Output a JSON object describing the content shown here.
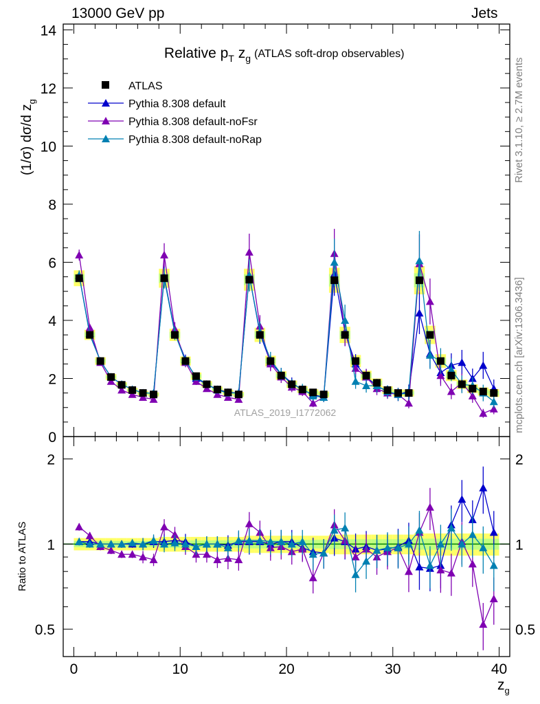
{
  "header": {
    "left": "13000 GeV pp",
    "right": "Jets",
    "rivet": "Rivet 3.1.10, ≥ 2.7M events",
    "mcplots": "mcplots.cern.ch [arXiv:1306.3436]"
  },
  "chart_data": {
    "type": "scatter",
    "title": "Relative p_T z_g",
    "subtitle": "(ATLAS soft-drop observables)",
    "xlabel": "z_g",
    "ylabel": "(1/σ) dσ/d z_g",
    "ratio_ylabel": "Ratio to ATLAS",
    "watermark": "ATLAS_2019_I1772062",
    "xlim": [
      -1,
      41
    ],
    "ylim": [
      0,
      14.2
    ],
    "ratio_ylim": [
      0.4,
      2.4
    ],
    "ratio_scale": "log",
    "xticks": [
      "0",
      "10",
      "20",
      "30",
      "40"
    ],
    "yticks": [
      "0",
      "2",
      "4",
      "6",
      "8",
      "10",
      "12",
      "14"
    ],
    "ratio_yticks": [
      "0.5",
      "1",
      "2"
    ],
    "legend_position": "top-left",
    "colors": {
      "data": "#000000",
      "default": "#0000cc",
      "noFsr": "#7f00b2",
      "noRap": "#0080b2",
      "band_inner": "#c0ff80",
      "band_outer": "#ffff66",
      "ratio_ref": "#008000"
    },
    "x": [
      0.5,
      1.5,
      2.5,
      3.5,
      4.5,
      5.5,
      6.5,
      7.5,
      8.5,
      9.5,
      10.5,
      11.5,
      12.5,
      13.5,
      14.5,
      15.5,
      16.5,
      17.5,
      18.5,
      19.5,
      20.5,
      21.5,
      22.5,
      23.5,
      24.5,
      25.5,
      26.5,
      27.5,
      28.5,
      29.5,
      30.5,
      31.5,
      32.5,
      33.5,
      34.5,
      35.5,
      36.5,
      37.5,
      38.5,
      39.5
    ],
    "series": [
      {
        "name": "ATLAS",
        "key": "data",
        "values": [
          5.45,
          3.5,
          2.6,
          2.05,
          1.78,
          1.6,
          1.5,
          1.45,
          5.45,
          3.5,
          2.6,
          2.08,
          1.8,
          1.62,
          1.52,
          1.45,
          5.4,
          3.5,
          2.6,
          2.1,
          1.8,
          1.62,
          1.52,
          1.45,
          5.38,
          3.5,
          2.6,
          2.1,
          1.85,
          1.6,
          1.5,
          1.5,
          5.38,
          3.5,
          2.6,
          2.1,
          1.8,
          1.65,
          1.55,
          1.5
        ]
      },
      {
        "name": "Pythia 8.308 default",
        "key": "default",
        "values": [
          5.55,
          3.55,
          2.6,
          2.05,
          1.8,
          1.62,
          1.5,
          1.5,
          5.5,
          3.6,
          2.65,
          2.0,
          1.8,
          1.62,
          1.52,
          1.5,
          5.55,
          3.55,
          2.55,
          2.15,
          1.85,
          1.6,
          1.45,
          1.35,
          5.6,
          3.6,
          2.5,
          2.05,
          1.75,
          1.55,
          1.45,
          1.55,
          4.25,
          2.85,
          2.2,
          2.45,
          2.55,
          2.0,
          2.45,
          1.65
        ],
        "ratio": [
          1.02,
          1.02,
          1.0,
          1.0,
          1.0,
          1.0,
          1.0,
          1.02,
          1.02,
          1.03,
          1.02,
          0.98,
          1.0,
          1.0,
          0.99,
          1.02,
          1.02,
          1.02,
          1.0,
          1.02,
          1.02,
          0.97,
          0.94,
          0.93,
          1.05,
          1.02,
          0.96,
          0.98,
          0.95,
          0.96,
          0.98,
          1.03,
          0.83,
          0.82,
          0.84,
          1.17,
          1.44,
          1.22,
          1.58,
          1.1
        ]
      },
      {
        "name": "Pythia 8.308 default-noFsr",
        "key": "noFsr",
        "values": [
          6.25,
          3.75,
          2.55,
          1.9,
          1.6,
          1.45,
          1.35,
          1.28,
          6.25,
          3.7,
          2.55,
          1.9,
          1.65,
          1.45,
          1.35,
          1.28,
          6.35,
          3.8,
          2.5,
          2.05,
          1.7,
          1.55,
          1.15,
          1.35,
          6.3,
          3.6,
          2.35,
          2.05,
          1.65,
          1.5,
          1.45,
          1.15,
          5.95,
          4.65,
          2.1,
          1.55,
          1.85,
          1.4,
          0.8,
          0.95
        ],
        "ratio": [
          1.15,
          1.07,
          0.98,
          0.95,
          0.92,
          0.92,
          0.9,
          0.88,
          1.15,
          1.08,
          0.98,
          0.92,
          0.92,
          0.88,
          0.89,
          0.88,
          1.18,
          1.1,
          0.97,
          0.98,
          0.94,
          0.96,
          0.76,
          0.93,
          1.17,
          1.03,
          0.9,
          0.96,
          0.9,
          0.94,
          0.97,
          0.8,
          1.1,
          1.35,
          0.81,
          0.79,
          1.02,
          0.85,
          0.52,
          0.64
        ]
      },
      {
        "name": "Pythia 8.308 default-noRap",
        "key": "noRap",
        "values": [
          5.55,
          3.5,
          2.6,
          2.05,
          1.8,
          1.62,
          1.5,
          1.5,
          5.45,
          3.55,
          2.6,
          2.05,
          1.8,
          1.6,
          1.5,
          1.5,
          5.55,
          3.6,
          2.65,
          2.15,
          1.8,
          1.65,
          1.4,
          1.35,
          6.0,
          4.0,
          1.9,
          1.75,
          1.75,
          1.55,
          1.45,
          1.5,
          6.05,
          2.8,
          2.6,
          2.3,
          1.8,
          1.75,
          1.5,
          1.2
        ],
        "ratio": [
          1.02,
          1.0,
          1.0,
          1.0,
          1.0,
          1.01,
          1.0,
          1.03,
          1.0,
          1.01,
          1.0,
          0.98,
          1.0,
          1.0,
          0.97,
          1.03,
          1.03,
          1.03,
          1.02,
          1.02,
          1.0,
          1.02,
          0.92,
          0.93,
          1.12,
          1.14,
          0.78,
          0.87,
          0.95,
          0.97,
          0.97,
          1.0,
          1.12,
          0.84,
          1.0,
          1.14,
          1.0,
          1.08,
          0.97,
          0.84
        ]
      }
    ]
  }
}
